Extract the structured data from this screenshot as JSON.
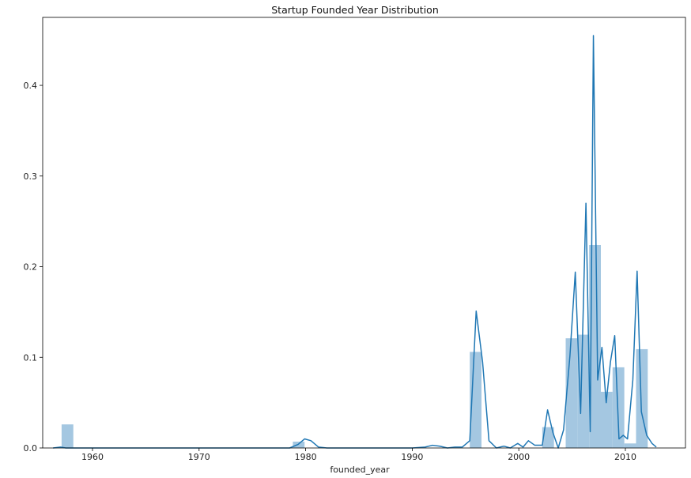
{
  "chart_data": {
    "type": "bar",
    "title": "Startup Founded Year Distribution",
    "xlabel": "founded_year",
    "ylabel": "",
    "xlim": [
      1955.0,
      1963.5
    ],
    "ylim": [
      0,
      0.475
    ],
    "x_ticks": [
      1960,
      1970,
      1980,
      1990,
      2000,
      2010
    ],
    "x_tick_labels": [
      "1960",
      "1970",
      "1980",
      "1990",
      "2000",
      "2010"
    ],
    "y_ticks": [
      0.0,
      0.1,
      0.2,
      0.3,
      0.4
    ],
    "y_tick_labels": [
      "0.0",
      "0.1",
      "0.2",
      "0.3",
      "0.4"
    ],
    "grid": false,
    "histogram": {
      "color": "#a4c7e1",
      "bins": [
        {
          "x0": 1957.1,
          "x1": 1958.2,
          "value": 0.026
        },
        {
          "x0": 1978.8,
          "x1": 1979.9,
          "value": 0.007
        },
        {
          "x0": 1995.4,
          "x1": 1996.5,
          "value": 0.106
        },
        {
          "x0": 2002.2,
          "x1": 2003.3,
          "value": 0.023
        },
        {
          "x0": 2004.4,
          "x1": 2005.5,
          "value": 0.121
        },
        {
          "x0": 2005.5,
          "x1": 2006.6,
          "value": 0.125
        },
        {
          "x0": 2006.6,
          "x1": 2007.7,
          "value": 0.224
        },
        {
          "x0": 2007.7,
          "x1": 2008.8,
          "value": 0.062
        },
        {
          "x0": 2008.8,
          "x1": 2009.9,
          "value": 0.089
        },
        {
          "x0": 2009.9,
          "x1": 2011.0,
          "value": 0.005
        },
        {
          "x0": 2011.0,
          "x1": 2012.1,
          "value": 0.109
        }
      ]
    },
    "kde": {
      "color": "#1f77b4",
      "x": [
        1956.3,
        1957.0,
        1957.5,
        1958.0,
        1960,
        1965,
        1970,
        1975,
        1978.5,
        1979.3,
        1979.9,
        1980.5,
        1981.2,
        1982,
        1985,
        1990,
        1991.2,
        1991.9,
        1992.6,
        1993.3,
        1994.0,
        1994.7,
        1995.4,
        1996.0,
        1996.6,
        1997.2,
        1997.9,
        1998.6,
        1999.2,
        1999.9,
        2000.4,
        2000.9,
        2001.5,
        2002.2,
        2002.7,
        2003.2,
        2003.7,
        2004.2,
        2004.8,
        2005.3,
        2005.8,
        2006.3,
        2006.7,
        2007.0,
        2007.4,
        2007.8,
        2008.2,
        2008.6,
        2009.0,
        2009.4,
        2009.8,
        2010.2,
        2010.7,
        2011.1,
        2011.5,
        2012.0,
        2012.5,
        2012.9
      ],
      "y": [
        0.0,
        0.001,
        0.0,
        0.0,
        0.0,
        0.0,
        0.0,
        0.0,
        0.0,
        0.004,
        0.01,
        0.008,
        0.001,
        0.0,
        0.0,
        0.0,
        0.001,
        0.003,
        0.002,
        0.0,
        0.001,
        0.001,
        0.008,
        0.151,
        0.095,
        0.008,
        0.0,
        0.002,
        0.0,
        0.005,
        0.001,
        0.008,
        0.003,
        0.003,
        0.042,
        0.017,
        0.0,
        0.02,
        0.102,
        0.194,
        0.038,
        0.27,
        0.018,
        0.455,
        0.075,
        0.111,
        0.05,
        0.095,
        0.124,
        0.01,
        0.014,
        0.01,
        0.075,
        0.195,
        0.04,
        0.014,
        0.005,
        0.001
      ]
    }
  }
}
